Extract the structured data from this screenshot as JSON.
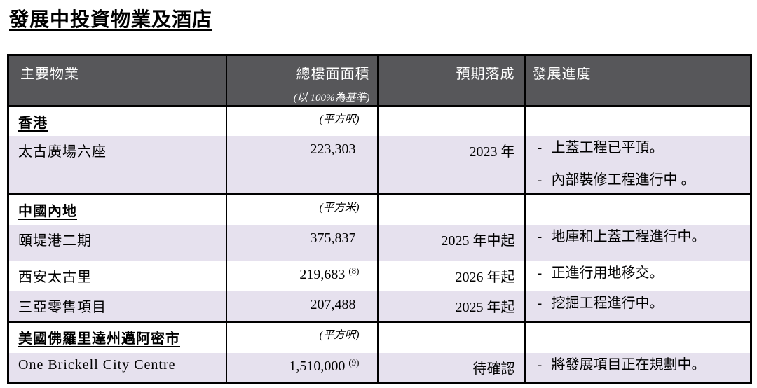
{
  "page": {
    "title": "發展中投資物業及酒店"
  },
  "table": {
    "bullet": "-",
    "colors": {
      "header_bg": "#57575a",
      "header_text": "#ffffff",
      "alt_row_bg": "#e6e1ee",
      "border": "#000000"
    },
    "columns": {
      "property": "主要物業",
      "gfa": "總樓面面積",
      "gfa_sub": "(以 100%為基準)",
      "completion": "預期落成",
      "progress": "發展進度"
    },
    "rows": [
      {
        "type": "section",
        "name": "香港",
        "unit": "(平方呎)"
      },
      {
        "type": "property",
        "name": "太古廣場六座",
        "gfa": "223,303",
        "sup": "",
        "completion": "2023 年",
        "progress": [
          "上蓋工程已平頂。",
          "內部裝修工程進行中 。"
        ]
      },
      {
        "type": "section",
        "name": "中國內地",
        "unit": "(平方米)"
      },
      {
        "type": "property",
        "name": "頤堤港二期",
        "gfa": "375,837",
        "sup": "",
        "completion": "2025 年中起",
        "progress": [
          "地庫和上蓋工程進行中。"
        ]
      },
      {
        "type": "property",
        "name": "西安太古里",
        "gfa": "219,683",
        "sup": "(8)",
        "completion": "2026 年起",
        "progress": [
          "正進行用地移交。"
        ]
      },
      {
        "type": "property",
        "name": "三亞零售項目",
        "gfa": "207,488",
        "sup": "",
        "completion": "2025 年起",
        "progress": [
          "挖掘工程進行中。"
        ]
      },
      {
        "type": "section",
        "name": "美國佛羅里達州邁阿密市",
        "unit": "(平方呎)"
      },
      {
        "type": "property",
        "name": "One Brickell City Centre",
        "gfa": "1,510,000",
        "sup": "(9)",
        "completion": "待確認",
        "progress": [
          "將發展項目正在規劃中。"
        ]
      }
    ]
  }
}
